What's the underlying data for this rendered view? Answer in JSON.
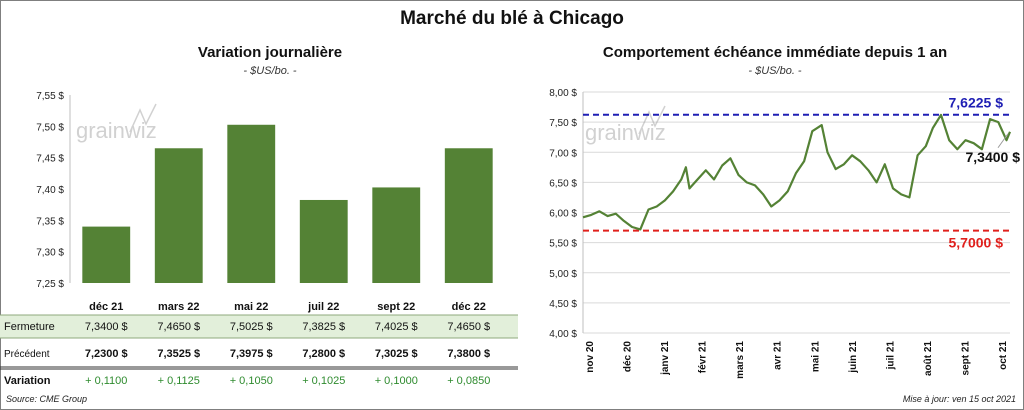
{
  "title": "Marché du blé à Chicago",
  "watermark": "grainwiz",
  "left": {
    "title": "Variation  journalière",
    "unit": "- $US/bo. -"
  },
  "right": {
    "title": "Comportement  échéance immédiate depuis 1 an",
    "unit": "- $US/bo. -"
  },
  "table": {
    "rows": [
      {
        "label": "Fermeture",
        "values": [
          "7,3400 $",
          "7,4650 $",
          "7,5025 $",
          "7,3825 $",
          "7,4025 $",
          "7,4650 $"
        ]
      },
      {
        "label": "Précédent",
        "values": [
          "7,2300 $",
          "7,3525 $",
          "7,3975 $",
          "7,2800 $",
          "7,3025 $",
          "7,3800 $"
        ]
      },
      {
        "label": "Variation",
        "values": [
          "+ 0,1100",
          "+ 0,1125",
          "+ 0,1050",
          "+ 0,1025",
          "+ 0,1000",
          "+ 0,0850"
        ]
      }
    ]
  },
  "footer": {
    "source": "Source: CME Group",
    "updated": "Mise à jour: ven 15 oct 2021"
  },
  "colors": {
    "bar": "#548235",
    "line": "#548235",
    "high": "#1f1fb4",
    "low": "#e0201c",
    "table_highlight": "#e2efda",
    "variation": "#2e8b2e"
  },
  "chart_data": [
    {
      "type": "bar",
      "categories": [
        "déc 21",
        "mars 22",
        "mai 22",
        "juil 22",
        "sept 22",
        "déc 22"
      ],
      "values": [
        7.34,
        7.465,
        7.5025,
        7.3825,
        7.4025,
        7.465
      ],
      "ylim": [
        7.25,
        7.55
      ],
      "yticks": [
        "7,25 $",
        "7,30 $",
        "7,35 $",
        "7,40 $",
        "7,45 $",
        "7,50 $",
        "7,55 $"
      ],
      "grid": false
    },
    {
      "type": "line",
      "x": [
        "2020-10-15",
        "2020-10-22",
        "2020-10-29",
        "2020-11-05",
        "2020-11-12",
        "2020-11-19",
        "2020-11-26",
        "2020-12-03",
        "2020-12-10",
        "2020-12-17",
        "2020-12-24",
        "2020-12-31",
        "2021-01-07",
        "2021-01-11",
        "2021-01-14",
        "2021-01-21",
        "2021-01-28",
        "2021-02-04",
        "2021-02-11",
        "2021-02-18",
        "2021-02-25",
        "2021-03-04",
        "2021-03-11",
        "2021-03-18",
        "2021-03-25",
        "2021-04-01",
        "2021-04-08",
        "2021-04-15",
        "2021-04-22",
        "2021-04-29",
        "2021-05-07",
        "2021-05-12",
        "2021-05-19",
        "2021-05-26",
        "2021-06-02",
        "2021-06-09",
        "2021-06-16",
        "2021-06-23",
        "2021-06-30",
        "2021-07-07",
        "2021-07-14",
        "2021-07-21",
        "2021-07-28",
        "2021-08-04",
        "2021-08-10",
        "2021-08-17",
        "2021-08-24",
        "2021-08-31",
        "2021-09-07",
        "2021-09-14",
        "2021-09-21",
        "2021-09-28",
        "2021-10-05",
        "2021-10-12",
        "2021-10-15"
      ],
      "y": [
        5.92,
        5.96,
        6.02,
        5.94,
        5.98,
        5.86,
        5.76,
        5.72,
        6.05,
        6.1,
        6.2,
        6.35,
        6.55,
        6.75,
        6.4,
        6.55,
        6.7,
        6.55,
        6.78,
        6.9,
        6.62,
        6.5,
        6.45,
        6.3,
        6.1,
        6.2,
        6.35,
        6.65,
        6.85,
        7.35,
        7.45,
        7.0,
        6.72,
        6.8,
        6.95,
        6.85,
        6.7,
        6.5,
        6.8,
        6.4,
        6.3,
        6.25,
        6.95,
        7.1,
        7.4,
        7.62,
        7.2,
        7.05,
        7.2,
        7.15,
        7.05,
        7.55,
        7.5,
        7.2,
        7.34
      ],
      "ylim": [
        4.0,
        8.0
      ],
      "yticks": [
        "4,00 $",
        "4,50 $",
        "5,00 $",
        "5,50 $",
        "6,00 $",
        "6,50 $",
        "7,00 $",
        "7,50 $",
        "8,00 $"
      ],
      "xticks": [
        "nov 20",
        "déc 20",
        "janv 21",
        "févr 21",
        "mars 21",
        "avr 21",
        "mai 21",
        "juin 21",
        "juil 21",
        "août 21",
        "sept 21",
        "oct 21"
      ],
      "high": 7.6225,
      "high_label": "7,6225 $",
      "low": 5.7,
      "low_label": "5,7000 $",
      "last_label": "7,3400 $",
      "grid": true
    }
  ]
}
